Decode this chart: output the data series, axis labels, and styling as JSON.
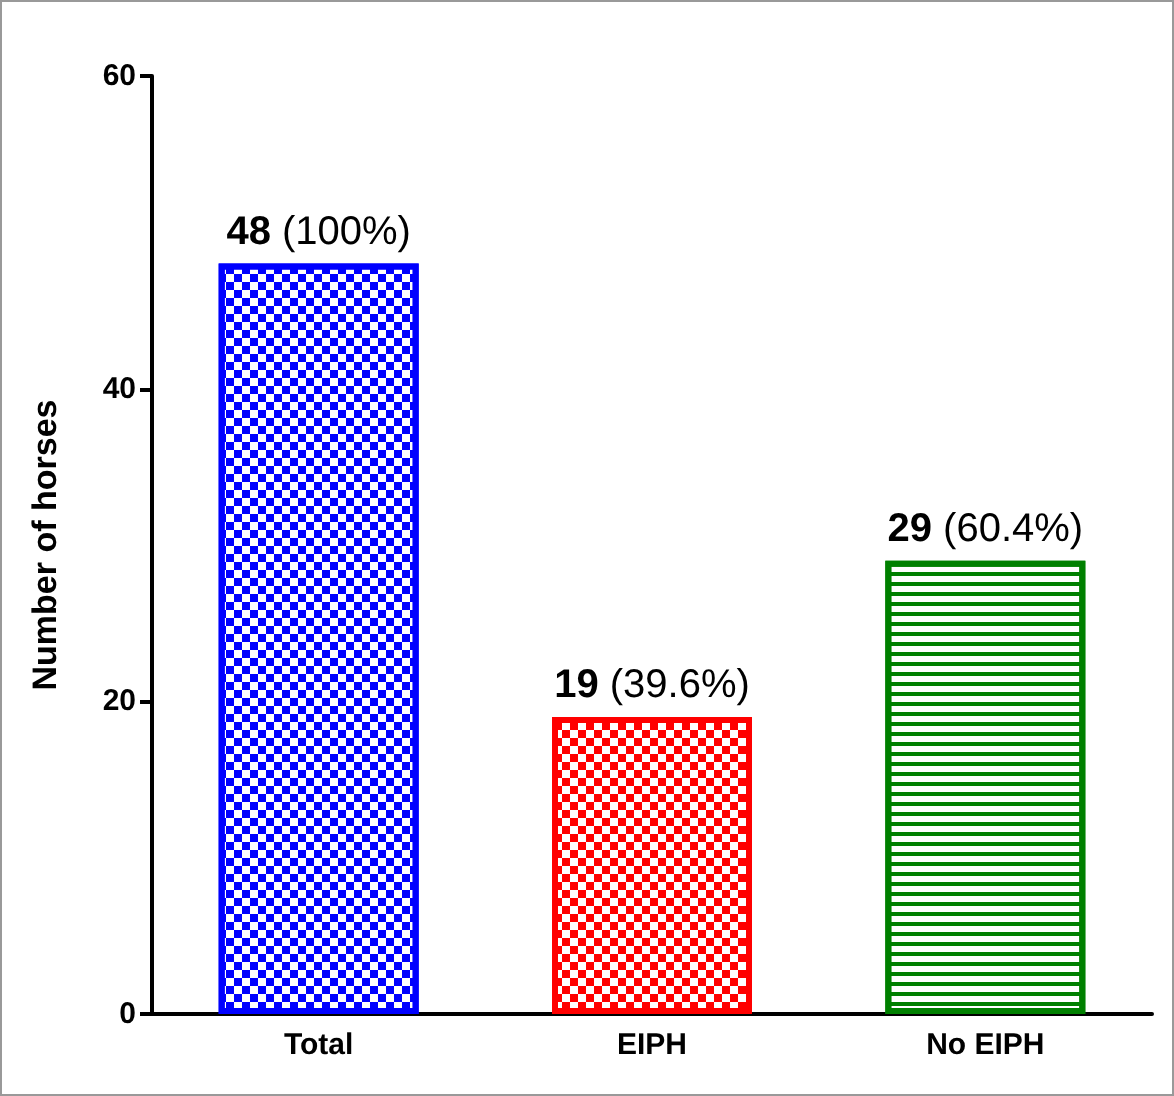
{
  "chart_data": {
    "type": "bar",
    "ylabel": "Number of horses",
    "categories": [
      "Total",
      "EIPH",
      "No EIPH"
    ],
    "values": [
      48,
      19,
      29
    ],
    "colors": [
      "#0000ff",
      "#ff0000",
      "#008000"
    ],
    "value_labels": [
      "48 (100%)",
      "19 (39.6%)",
      "29 (60.4%)"
    ],
    "ylim": [
      0,
      60
    ],
    "yticks": [
      0,
      20,
      40,
      60
    ],
    "grid": false
  }
}
